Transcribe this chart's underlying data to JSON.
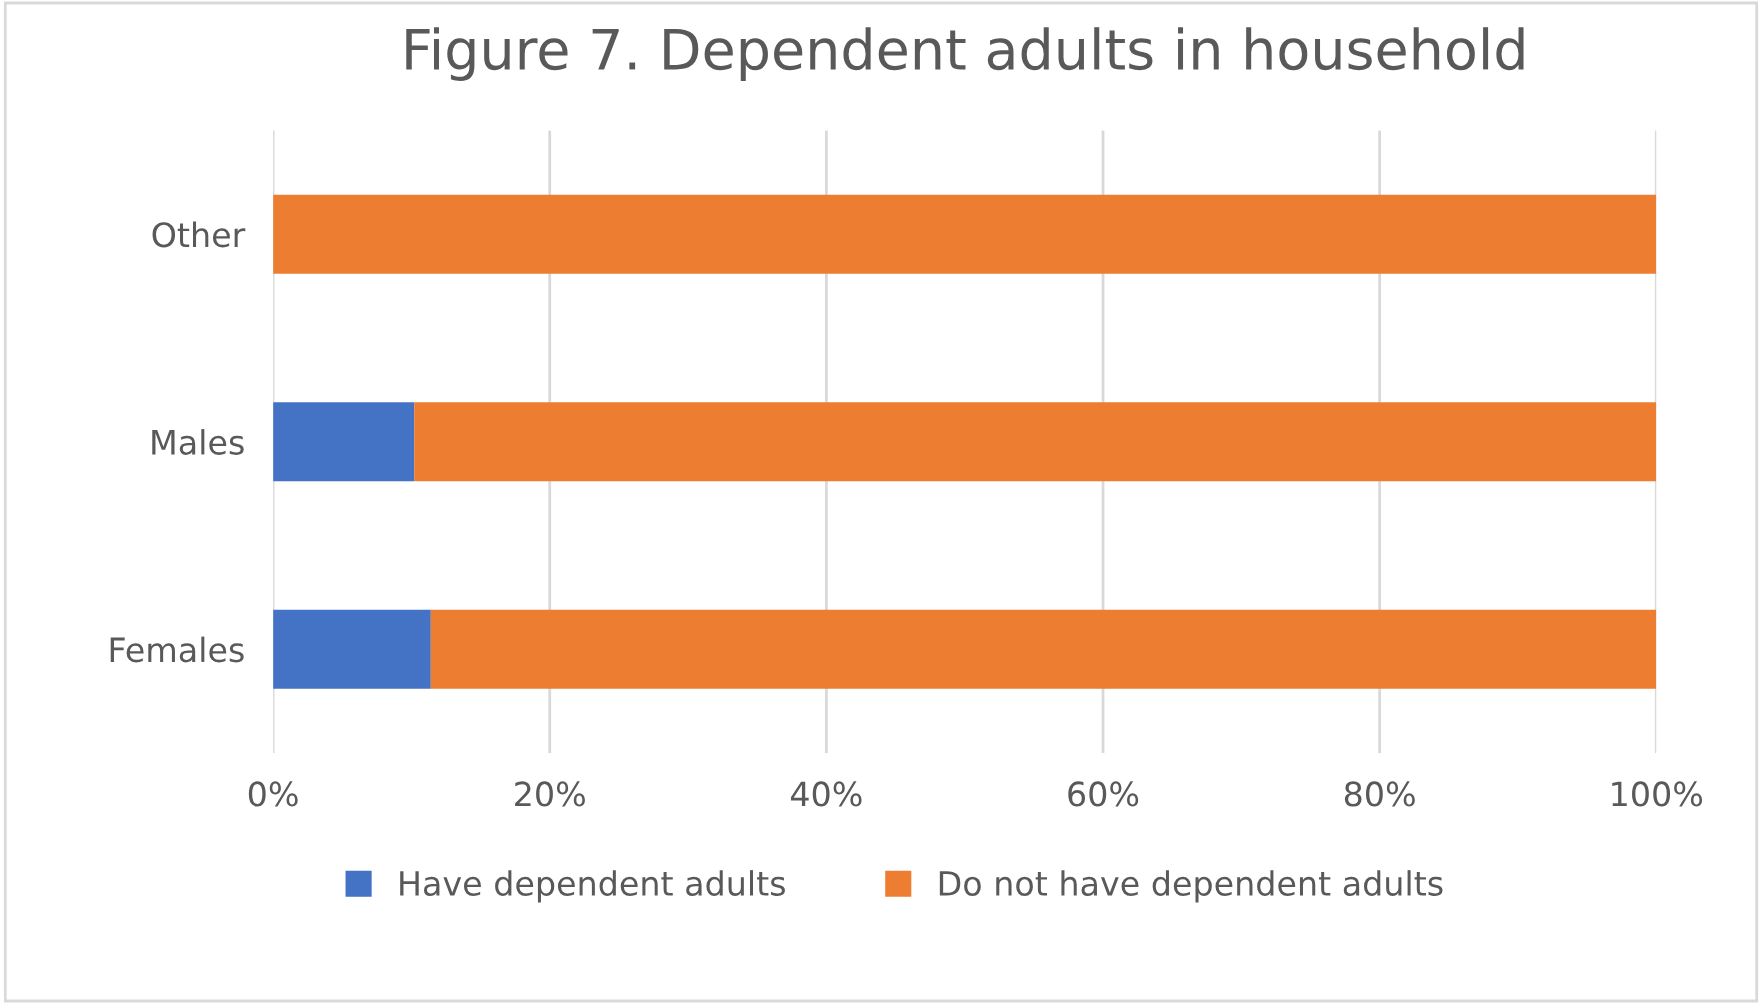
{
  "chart_data": {
    "type": "bar",
    "title": "Figure 7. Dependent adults in household",
    "orientation": "horizontal",
    "stacked": true,
    "categories": [
      "Other",
      "Males",
      "Females"
    ],
    "series": [
      {
        "name": "Have dependent adults",
        "color": "#4472c4",
        "values": [
          0,
          10.2,
          11.4
        ]
      },
      {
        "name": "Do not have dependent adults",
        "color": "#ed7d31",
        "values": [
          100,
          89.8,
          88.6
        ]
      }
    ],
    "xlim": [
      0,
      100
    ],
    "xticks": [
      {
        "value": 0,
        "label": "0%"
      },
      {
        "value": 20,
        "label": "20%"
      },
      {
        "value": 40,
        "label": "40%"
      },
      {
        "value": 60,
        "label": "60%"
      },
      {
        "value": 80,
        "label": "80%"
      },
      {
        "value": 100,
        "label": "100%"
      }
    ],
    "grid": "x",
    "legend": "bottom"
  }
}
